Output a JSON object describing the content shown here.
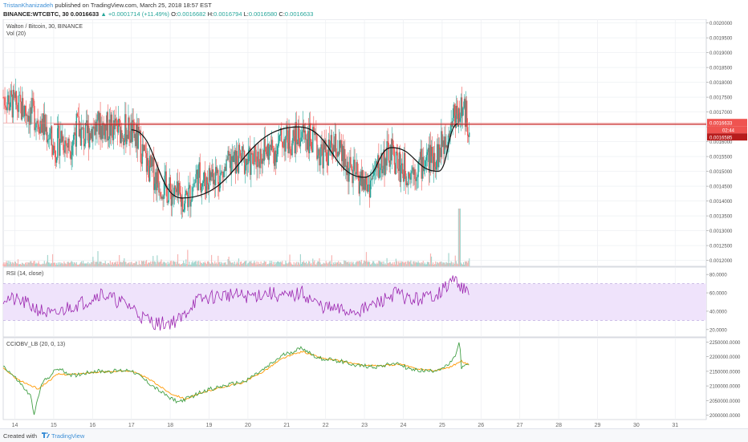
{
  "header": {
    "author": "TristanKhanizadeh",
    "published": "published on TradingView.com, March 25, 2018 18:57 EST",
    "symbol_line": "BINANCE:WTCBTC, 30",
    "last": "0.0016633",
    "change": "▲ +0.0001714 (+11.49%)",
    "o_label": "O:",
    "o": "0.0016682",
    "h_label": "H:",
    "h": "0.0016794",
    "l_label": "L:",
    "l": "0.0016580",
    "c_label": "C:",
    "c": "0.0016633"
  },
  "footer": {
    "created": "Created with",
    "brand": "TradingView",
    "icon": "tradingview-logo-icon"
  },
  "colors": {
    "up": "#26a69a",
    "down": "#ef5350",
    "rsi": "#9c27b0",
    "rsi_band": "#efe3fb",
    "obv_green": "#43a047",
    "obv_orange": "#ff9800",
    "level": "#c62828"
  },
  "chart_data": {
    "type": "candlestick",
    "price_panel": {
      "legend": [
        "Walton / Bitcoin, 30, BINANCE",
        "Vol (20)"
      ],
      "y_ticks": [
        "0.0020000",
        "0.0019500",
        "0.0019000",
        "0.0018500",
        "0.0018000",
        "0.0017500",
        "0.0017000",
        "0.0016500",
        "0.0016000",
        "0.0015500",
        "0.0015000",
        "0.0014500",
        "0.0014000",
        "0.0013500",
        "0.0013000",
        "0.0012500",
        "0.0012000"
      ],
      "ylim": [
        0.00118,
        0.0020125
      ],
      "close_path": [
        [
          13.7,
          0.00175
        ],
        [
          14.0,
          0.00172
        ],
        [
          14.3,
          0.001705
        ],
        [
          14.6,
          0.00168
        ],
        [
          14.9,
          0.00162
        ],
        [
          15.0,
          0.00157
        ],
        [
          15.2,
          0.00162
        ],
        [
          15.4,
          0.00158
        ],
        [
          15.6,
          0.00165
        ],
        [
          15.8,
          0.00161
        ],
        [
          16.0,
          0.00165
        ],
        [
          16.3,
          0.00165
        ],
        [
          16.6,
          0.00164
        ],
        [
          16.9,
          0.00164
        ],
        [
          17.2,
          0.0016
        ],
        [
          17.4,
          0.00152
        ],
        [
          17.7,
          0.00147
        ],
        [
          18.0,
          0.00143
        ],
        [
          18.3,
          0.0014
        ],
        [
          18.5,
          0.00142
        ],
        [
          18.7,
          0.00149
        ],
        [
          18.9,
          0.00146
        ],
        [
          19.1,
          0.0015
        ],
        [
          19.3,
          0.00148
        ],
        [
          19.5,
          0.00152
        ],
        [
          19.8,
          0.00154
        ],
        [
          20.1,
          0.00153
        ],
        [
          20.4,
          0.00157
        ],
        [
          20.7,
          0.00157
        ],
        [
          20.9,
          0.00161
        ],
        [
          21.1,
          0.0016
        ],
        [
          21.4,
          0.00163
        ],
        [
          21.6,
          0.00161
        ],
        [
          21.8,
          0.00157
        ],
        [
          22.0,
          0.00156
        ],
        [
          22.3,
          0.00158
        ],
        [
          22.5,
          0.00152
        ],
        [
          22.7,
          0.00149
        ],
        [
          22.9,
          0.00147
        ],
        [
          23.1,
          0.00145
        ],
        [
          23.3,
          0.0015
        ],
        [
          23.5,
          0.00154
        ],
        [
          23.7,
          0.00156
        ],
        [
          23.9,
          0.00152
        ],
        [
          24.1,
          0.0015
        ],
        [
          24.3,
          0.00151
        ],
        [
          24.6,
          0.00154
        ],
        [
          24.9,
          0.00156
        ],
        [
          25.1,
          0.00162
        ],
        [
          25.3,
          0.00169
        ],
        [
          25.5,
          0.00171
        ],
        [
          25.7,
          0.0016633
        ]
      ],
      "last_price_label": "0.0016633",
      "last_price_time": "02:44",
      "level_label": "0.0016585",
      "level_value": 0.0016585,
      "annotation_curve": [
        [
          17.0,
          0.00164
        ],
        [
          18.3,
          0.00141
        ],
        [
          21.3,
          0.00165
        ],
        [
          23.0,
          0.00148
        ],
        [
          23.7,
          0.00158
        ],
        [
          24.9,
          0.0015
        ],
        [
          25.4,
          0.00166
        ]
      ]
    },
    "rsi_panel": {
      "legend": "RSI (14, close)",
      "y_ticks": [
        "80.0000",
        "60.0000",
        "40.0000",
        "20.0000"
      ],
      "ylim": [
        12,
        88
      ],
      "band": [
        30,
        70
      ],
      "path": [
        [
          13.7,
          55
        ],
        [
          14.2,
          50
        ],
        [
          14.6,
          42
        ],
        [
          15.0,
          35
        ],
        [
          15.4,
          45
        ],
        [
          15.8,
          50
        ],
        [
          16.2,
          60
        ],
        [
          16.6,
          52
        ],
        [
          17.0,
          45
        ],
        [
          17.3,
          33
        ],
        [
          17.7,
          26
        ],
        [
          18.0,
          28
        ],
        [
          18.3,
          32
        ],
        [
          18.6,
          50
        ],
        [
          19.0,
          55
        ],
        [
          19.5,
          58
        ],
        [
          20.0,
          56
        ],
        [
          20.5,
          60
        ],
        [
          21.0,
          55
        ],
        [
          21.4,
          60
        ],
        [
          21.8,
          47
        ],
        [
          22.2,
          42
        ],
        [
          22.6,
          40
        ],
        [
          23.0,
          42
        ],
        [
          23.4,
          50
        ],
        [
          23.8,
          60
        ],
        [
          24.2,
          52
        ],
        [
          24.6,
          55
        ],
        [
          25.0,
          62
        ],
        [
          25.3,
          75
        ],
        [
          25.5,
          68
        ],
        [
          25.7,
          55
        ]
      ]
    },
    "obv_panel": {
      "legend": "CCIOBV_LB (20, 0, 13)",
      "y_ticks": [
        "2250000.0000",
        "2200000.0000",
        "2150000.0000",
        "2100000.0000",
        "2050000.0000",
        "2000000.0000"
      ],
      "ylim": [
        1985000,
        2265000
      ],
      "green_path": [
        [
          13.7,
          2170000
        ],
        [
          14.1,
          2115000
        ],
        [
          14.4,
          2065000
        ],
        [
          14.5,
          2005000
        ],
        [
          14.7,
          2110000
        ],
        [
          15.1,
          2160000
        ],
        [
          15.5,
          2135000
        ],
        [
          16.0,
          2150000
        ],
        [
          16.5,
          2150000
        ],
        [
          17.0,
          2155000
        ],
        [
          17.4,
          2115000
        ],
        [
          17.8,
          2075000
        ],
        [
          18.2,
          2045000
        ],
        [
          18.5,
          2060000
        ],
        [
          18.9,
          2085000
        ],
        [
          19.4,
          2100000
        ],
        [
          19.9,
          2115000
        ],
        [
          20.4,
          2155000
        ],
        [
          20.9,
          2205000
        ],
        [
          21.4,
          2230000
        ],
        [
          21.8,
          2195000
        ],
        [
          22.4,
          2185000
        ],
        [
          22.8,
          2170000
        ],
        [
          23.3,
          2165000
        ],
        [
          23.8,
          2180000
        ],
        [
          24.2,
          2155000
        ],
        [
          24.7,
          2150000
        ],
        [
          25.1,
          2165000
        ],
        [
          25.3,
          2190000
        ],
        [
          25.45,
          2250000
        ],
        [
          25.5,
          2160000
        ],
        [
          25.7,
          2175000
        ]
      ],
      "orange_path": [
        [
          13.7,
          2160000
        ],
        [
          14.1,
          2120000
        ],
        [
          14.6,
          2090000
        ],
        [
          15.1,
          2140000
        ],
        [
          15.6,
          2140000
        ],
        [
          16.1,
          2148000
        ],
        [
          16.6,
          2150000
        ],
        [
          17.0,
          2152000
        ],
        [
          17.5,
          2120000
        ],
        [
          18.0,
          2075000
        ],
        [
          18.4,
          2055000
        ],
        [
          18.9,
          2080000
        ],
        [
          19.4,
          2098000
        ],
        [
          19.9,
          2112000
        ],
        [
          20.4,
          2150000
        ],
        [
          20.9,
          2195000
        ],
        [
          21.4,
          2218000
        ],
        [
          21.9,
          2195000
        ],
        [
          22.4,
          2185000
        ],
        [
          22.9,
          2172000
        ],
        [
          23.4,
          2168000
        ],
        [
          23.9,
          2175000
        ],
        [
          24.3,
          2160000
        ],
        [
          24.8,
          2152000
        ],
        [
          25.2,
          2165000
        ],
        [
          25.5,
          2185000
        ],
        [
          25.7,
          2172000
        ]
      ]
    },
    "x_ticks": [
      "14",
      "15",
      "16",
      "17",
      "18",
      "19",
      "20",
      "21",
      "22",
      "23",
      "24",
      "25",
      "26",
      "27",
      "28",
      "29",
      "30",
      "31"
    ],
    "xlim": [
      13.7,
      31.8
    ]
  }
}
